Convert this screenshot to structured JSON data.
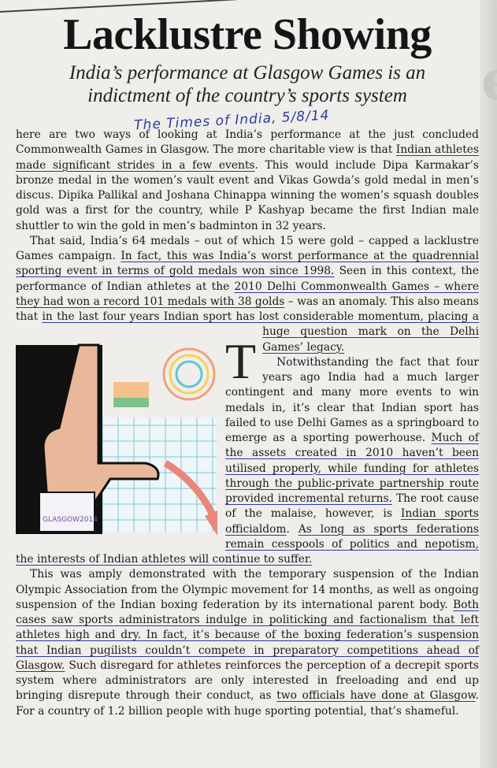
{
  "headline": "Lacklustre Showing",
  "subheadline": "India’s performance at Glasgow Games is an indictment of the country’s sports system",
  "handwritten_note": "The Times of India, 5/8/14",
  "illustration": {
    "wristband_text": "GLASGOW2014",
    "colors": {
      "pen": "#2d3aa0",
      "arrow": "#e8877a"
    }
  },
  "drop_cap": "T",
  "paragraphs": [
    [
      {
        "t": "here are two ways of looking at India’s performance at the just concluded Commonwealth Games in Glasgow. The more charitable view is that "
      },
      {
        "t": "Indian athletes made significant strides in a few events",
        "u": true
      },
      {
        "t": ". This would include Dipa Karmakar’s bronze medal in the women’s vault event and Vikas Gowda’s gold medal in men’s discus. Dipika Pallikal and Joshana Chinappa winning the women’s squash doubles gold was a first for the country, while P Kashyap became the first Indian male shuttler to win the gold in men’s badminton in 32 years."
      }
    ],
    [
      {
        "t": "That said, India’s 64 medals – out of which 15 were gold – capped a lacklustre Games campaign. "
      },
      {
        "t": "In fact, this was India’s worst performance at the quadrennial sporting event in terms of gold medals won since 1998.",
        "u": true
      },
      {
        "t": " Seen in this context, the performance of Indian athletes at the "
      },
      {
        "t": "2010 Delhi Commonwealth Games – where they had won a record 101 medals with 38 golds",
        "u": true
      },
      {
        "t": " – was an anomaly. This also means that "
      },
      {
        "t": "in the last four years Indian sport has lost considerable momentum, placing a huge question mark on the Delhi Games’ legacy.",
        "u": true
      }
    ],
    [
      {
        "t": "Notwithstanding the fact that four years ago India had a much larger contingent and many more events to win medals in, it’s clear that Indian sport has failed to use Delhi Games as a springboard to emerge as a sporting powerhouse. "
      },
      {
        "t": "Much of the assets created in 2010 haven’t been utilised properly, while funding for athletes through the public-private partnership route provided incremental returns.",
        "u": true
      },
      {
        "t": " The root cause of the malaise, however, is "
      },
      {
        "t": "Indian sports officialdom",
        "u": true
      },
      {
        "t": ". "
      },
      {
        "t": "As long as sports federations remain cesspools of politics and nepotism, the interests of Indian athletes will continue to suffer.",
        "u": true
      }
    ],
    [
      {
        "t": "This was amply demonstrated with the temporary suspension of the Indian Olympic Association from the Olympic movement for 14 months, as well as ongoing suspension of the Indian boxing federation by its international parent body. "
      },
      {
        "t": "Both cases saw sports administrators indulge in politicking and factionalism that left athletes high and dry. In fact, it’s because of the boxing federation’s suspension that Indian pugilists couldn’t compete in preparatory competitions ahead of Glasgow.",
        "u": true
      },
      {
        "t": " Such disregard for athletes reinforces the perception of a decrepit sports system where administrators are only interested in freeloading and end up bringing disrepute through their conduct, as "
      },
      {
        "t": "two officials have done at Glasgow",
        "u": true
      },
      {
        "t": ". For a country of 1.2 billion people with huge sporting potential, that’s shameful."
      }
    ]
  ]
}
